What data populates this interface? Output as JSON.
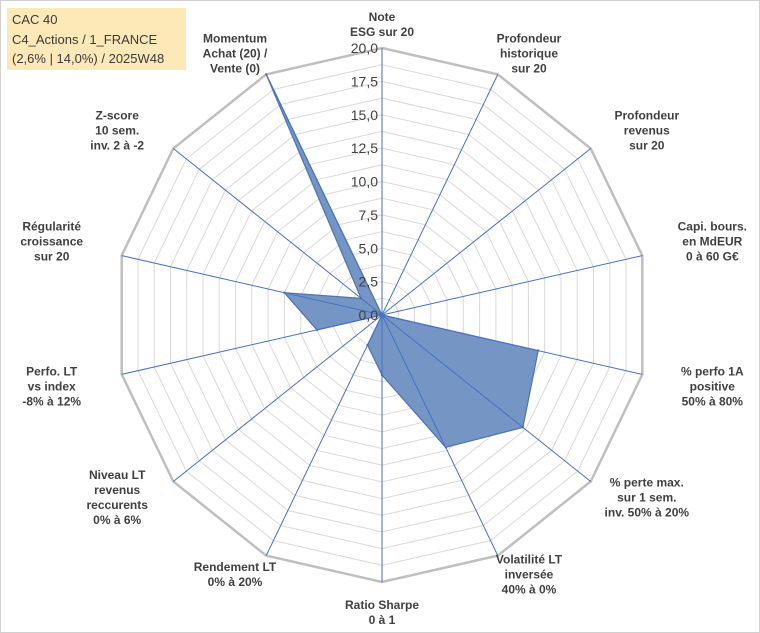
{
  "header": {
    "line1": "CAC 40",
    "line2": "C4_Actions / 1_FRANCE",
    "line3": "(2,6% | 14,0%) / 2025W48"
  },
  "chart_data": {
    "type": "radar",
    "rmin": 0,
    "rmax": 20,
    "ticks": [
      "0,0",
      "2,5",
      "5,0",
      "7,5",
      "10,0",
      "12,5",
      "15,0",
      "17,5",
      "20,0"
    ],
    "tick_values": [
      0,
      2.5,
      5,
      7.5,
      10,
      12.5,
      15,
      17.5,
      20
    ],
    "minor_step": 1.25,
    "axes": [
      [
        "Note",
        "ESG sur 20"
      ],
      [
        "Profondeur",
        "historique",
        "sur 20"
      ],
      [
        "Profondeur",
        "revenus",
        "sur 20"
      ],
      [
        "Capi. bours.",
        "en MdEUR",
        "0 à 60 G€"
      ],
      [
        "% perfo 1A",
        "positive",
        "50% à 80%"
      ],
      [
        "% perte max.",
        "sur 1 sem.",
        "inv. 50% à 20%"
      ],
      [
        "Volatilité LT",
        "inversée",
        "40% à 0%"
      ],
      [
        "Ratio Sharpe",
        "0 à 1"
      ],
      [
        "Rendement LT",
        "0% à 20%"
      ],
      [
        "Niveau LT",
        "revenus",
        "reccurents",
        "0% à 6%"
      ],
      [
        "Perfo. LT",
        "vs index",
        "-8% à 12%"
      ],
      [
        "Régularité",
        "croissance",
        "sur 20"
      ],
      [
        "Z-score",
        "10 sem.",
        "inv. 2 à -2"
      ],
      [
        "Momentum",
        "Achat (20) /",
        "Vente (0)"
      ]
    ],
    "values": [
      0,
      0,
      0,
      0,
      12,
      13.5,
      11,
      4.5,
      2.5,
      0,
      5,
      7.5,
      2,
      20
    ],
    "colors": {
      "fill": "#6e8fc2",
      "stroke": "#4f73ad",
      "axis": "#4472c4",
      "grid": "#d9d9d9",
      "outer": "#bfbfbf"
    }
  }
}
